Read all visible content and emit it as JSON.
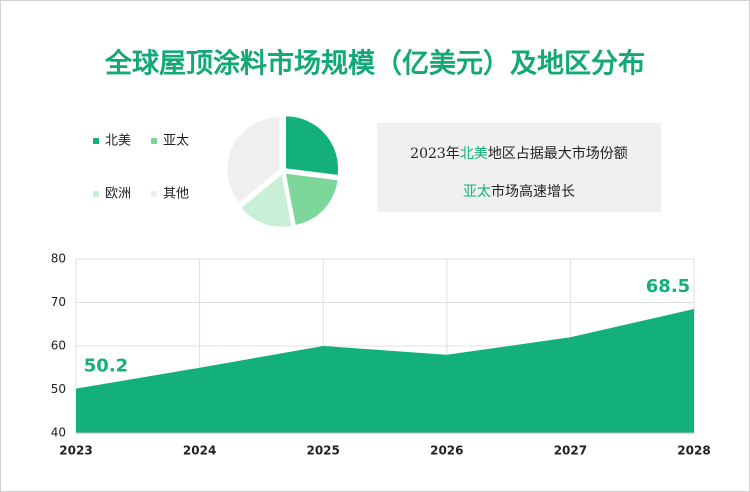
{
  "chart_data": [
    {
      "type": "pie",
      "title": "全球屋顶涂料市场规模（亿美元）及地区分布",
      "categories": [
        "北美",
        "亚太",
        "欧洲",
        "其他"
      ],
      "values": [
        27,
        20,
        17,
        36
      ],
      "colors": [
        "#13b07c",
        "#7dd69a",
        "#c9efd8",
        "#efefef"
      ],
      "annotations": [
        [
          {
            "text": "2023年",
            "highlight": false
          },
          {
            "text": "北美",
            "highlight": true
          },
          {
            "text": "地区占据最大市场份额",
            "highlight": false
          }
        ],
        [
          {
            "text": "亚太",
            "highlight": true
          },
          {
            "text": "市场高速增长",
            "highlight": false
          }
        ]
      ],
      "highlight_color": "#13b07c"
    },
    {
      "type": "area",
      "x": [
        "2023",
        "2024",
        "2025",
        "2026",
        "2027",
        "2028"
      ],
      "values": [
        50.2,
        55,
        60,
        58,
        62,
        68.5
      ],
      "value_labels": [
        "50.2",
        null,
        null,
        null,
        null,
        "68.5"
      ],
      "color": "#13b07c",
      "ylim": [
        40,
        80
      ],
      "yticks": [
        40,
        50,
        60,
        70,
        80
      ],
      "grid": true
    }
  ]
}
